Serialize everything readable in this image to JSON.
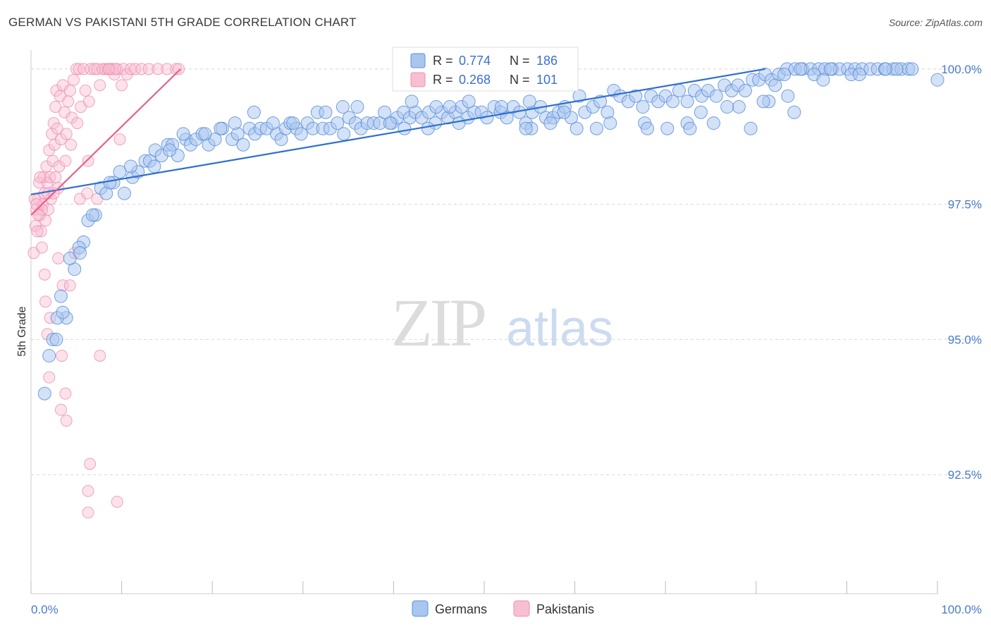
{
  "title": "GERMAN VS PAKISTANI 5TH GRADE CORRELATION CHART",
  "source": "Source: ZipAtlas.com",
  "watermark": {
    "part1": "ZIP",
    "part2": "atlas"
  },
  "legend": {
    "r_label": "R =",
    "n_label": "N =",
    "germans": {
      "r": "0.774",
      "n": "186"
    },
    "pakistanis": {
      "r": "0.268",
      "n": "101"
    }
  },
  "colors": {
    "german_fill": "#a9c6f0",
    "german_stroke": "#5b8fdb",
    "german_line": "#2f6fd0",
    "pakistani_fill": "#f8bfd2",
    "pakistani_stroke": "#ec8fb0",
    "pakistani_line": "#e8608a",
    "grid": "#d8d8d8",
    "tick_label": "#4a7bc8"
  },
  "chart_data": {
    "type": "scatter",
    "title": "GERMAN VS PAKISTANI 5TH GRADE CORRELATION CHART",
    "xlabel": "",
    "ylabel": "5th Grade",
    "xlim": [
      0,
      100
    ],
    "ylim": [
      90.3,
      100.35
    ],
    "x_tick_labels": [
      "0.0%",
      "100.0%"
    ],
    "y_ticks": [
      92.5,
      95.0,
      97.5,
      100.0
    ],
    "y_tick_labels": [
      "92.5%",
      "95.0%",
      "97.5%",
      "100.0%"
    ],
    "legend_position": "bottom-center",
    "bottom_legend": [
      "Germans",
      "Pakistanis"
    ],
    "series": [
      {
        "name": "Germans",
        "r": 0.774,
        "n": 186,
        "trend": [
          [
            0,
            97.68
          ],
          [
            81,
            100.0
          ]
        ],
        "points": [
          [
            1.5,
            94.0
          ],
          [
            2,
            94.7
          ],
          [
            2.4,
            95.0
          ],
          [
            3.3,
            95.8
          ],
          [
            3.9,
            95.4
          ],
          [
            2.9,
            95.4
          ],
          [
            4.8,
            96.3
          ],
          [
            4.3,
            96.5
          ],
          [
            5.8,
            96.8
          ],
          [
            5.3,
            96.7
          ],
          [
            6.3,
            97.2
          ],
          [
            7.1,
            97.3
          ],
          [
            7.7,
            97.8
          ],
          [
            8.3,
            97.7
          ],
          [
            9.1,
            97.9
          ],
          [
            9.8,
            98.1
          ],
          [
            10.3,
            97.7
          ],
          [
            11.2,
            98.0
          ],
          [
            11.8,
            98.1
          ],
          [
            12.6,
            98.3
          ],
          [
            13.1,
            98.3
          ],
          [
            13.7,
            98.5
          ],
          [
            14.4,
            98.4
          ],
          [
            15.1,
            98.6
          ],
          [
            15.6,
            98.6
          ],
          [
            16.2,
            98.4
          ],
          [
            17.1,
            98.7
          ],
          [
            17.6,
            98.6
          ],
          [
            18.2,
            98.7
          ],
          [
            18.9,
            98.8
          ],
          [
            19.6,
            98.6
          ],
          [
            20.3,
            98.7
          ],
          [
            21.1,
            98.9
          ],
          [
            22.2,
            98.7
          ],
          [
            22.8,
            98.8
          ],
          [
            23.4,
            98.6
          ],
          [
            24.1,
            98.9
          ],
          [
            24.7,
            98.8
          ],
          [
            25.3,
            98.9
          ],
          [
            26.0,
            98.9
          ],
          [
            27.1,
            98.8
          ],
          [
            27.6,
            98.7
          ],
          [
            28.1,
            98.9
          ],
          [
            28.6,
            99.0
          ],
          [
            29.3,
            98.9
          ],
          [
            29.8,
            98.8
          ],
          [
            30.5,
            99.0
          ],
          [
            31.1,
            98.9
          ],
          [
            31.6,
            99.2
          ],
          [
            32.2,
            98.9
          ],
          [
            33.0,
            98.9
          ],
          [
            33.8,
            99.0
          ],
          [
            34.5,
            98.8
          ],
          [
            35.1,
            99.1
          ],
          [
            35.8,
            99.0
          ],
          [
            36.4,
            98.9
          ],
          [
            37.1,
            99.0
          ],
          [
            37.8,
            99.0
          ],
          [
            38.5,
            99.0
          ],
          [
            39.0,
            99.2
          ],
          [
            39.8,
            99.0
          ],
          [
            40.4,
            99.1
          ],
          [
            41.1,
            99.2
          ],
          [
            41.8,
            99.1
          ],
          [
            42.4,
            99.2
          ],
          [
            43.1,
            99.1
          ],
          [
            43.9,
            99.2
          ],
          [
            44.6,
            99.0
          ],
          [
            45.3,
            99.2
          ],
          [
            46.0,
            99.1
          ],
          [
            46.8,
            99.2
          ],
          [
            47.5,
            99.3
          ],
          [
            48.2,
            99.1
          ],
          [
            48.9,
            99.2
          ],
          [
            49.7,
            99.2
          ],
          [
            50.3,
            99.1
          ],
          [
            51.1,
            99.3
          ],
          [
            51.8,
            99.2
          ],
          [
            52.5,
            99.1
          ],
          [
            53.2,
            99.3
          ],
          [
            53.9,
            99.2
          ],
          [
            54.6,
            99.0
          ],
          [
            55.3,
            99.2
          ],
          [
            56.2,
            99.3
          ],
          [
            56.8,
            99.1
          ],
          [
            57.6,
            99.1
          ],
          [
            58.2,
            99.2
          ],
          [
            58.9,
            99.3
          ],
          [
            59.6,
            99.1
          ],
          [
            60.5,
            99.5
          ],
          [
            61.1,
            99.2
          ],
          [
            62.0,
            99.3
          ],
          [
            62.8,
            99.4
          ],
          [
            63.6,
            99.2
          ],
          [
            64.3,
            99.6
          ],
          [
            65.0,
            99.5
          ],
          [
            65.9,
            99.4
          ],
          [
            66.7,
            99.5
          ],
          [
            67.5,
            99.3
          ],
          [
            68.4,
            99.5
          ],
          [
            69.2,
            99.4
          ],
          [
            70.0,
            99.5
          ],
          [
            70.8,
            99.4
          ],
          [
            71.5,
            99.6
          ],
          [
            72.4,
            99.4
          ],
          [
            73.2,
            99.6
          ],
          [
            74.0,
            99.5
          ],
          [
            74.7,
            99.6
          ],
          [
            75.6,
            99.5
          ],
          [
            76.5,
            99.7
          ],
          [
            77.3,
            99.6
          ],
          [
            78.0,
            99.7
          ],
          [
            78.8,
            99.6
          ],
          [
            79.6,
            99.8
          ],
          [
            80.3,
            99.8
          ],
          [
            81.0,
            99.9
          ],
          [
            81.7,
            99.8
          ],
          [
            82.5,
            99.9
          ],
          [
            83.4,
            100.0
          ],
          [
            84.3,
            100.0
          ],
          [
            85.1,
            100.0
          ],
          [
            86.0,
            100.0
          ],
          [
            86.9,
            100.0
          ],
          [
            87.6,
            100.0
          ],
          [
            88.4,
            100.0
          ],
          [
            89.2,
            100.0
          ],
          [
            90.1,
            100.0
          ],
          [
            90.9,
            100.0
          ],
          [
            91.7,
            100.0
          ],
          [
            92.6,
            100.0
          ],
          [
            93.4,
            100.0
          ],
          [
            94.2,
            100.0
          ],
          [
            95.1,
            100.0
          ],
          [
            96.0,
            100.0
          ],
          [
            96.8,
            100.0
          ],
          [
            72.4,
            99.0
          ],
          [
            75.3,
            99.0
          ],
          [
            72.7,
            98.9
          ],
          [
            63.9,
            99.0
          ],
          [
            67.7,
            99.0
          ],
          [
            55.2,
            98.9
          ],
          [
            57.3,
            99.0
          ],
          [
            60.2,
            98.9
          ],
          [
            62.4,
            98.9
          ],
          [
            54.6,
            98.9
          ],
          [
            47.2,
            99.0
          ],
          [
            43.8,
            98.9
          ],
          [
            41.2,
            98.9
          ],
          [
            39.6,
            99.0
          ],
          [
            68.0,
            98.9
          ],
          [
            70.2,
            98.9
          ],
          [
            73.9,
            99.2
          ],
          [
            78.1,
            99.3
          ],
          [
            79.4,
            98.9
          ],
          [
            81.4,
            99.4
          ],
          [
            83.5,
            99.5
          ],
          [
            84.2,
            99.2
          ],
          [
            82.1,
            99.7
          ],
          [
            80.8,
            99.4
          ],
          [
            76.8,
            99.3
          ],
          [
            58.8,
            99.2
          ],
          [
            55.0,
            99.4
          ],
          [
            51.9,
            99.3
          ],
          [
            48.3,
            99.4
          ],
          [
            46.2,
            99.3
          ],
          [
            44.7,
            99.3
          ],
          [
            42.0,
            99.4
          ],
          [
            36.0,
            99.3
          ],
          [
            34.4,
            99.3
          ],
          [
            32.5,
            99.2
          ],
          [
            28.9,
            99.0
          ],
          [
            26.7,
            99.0
          ],
          [
            24.6,
            99.2
          ],
          [
            22.5,
            99.0
          ],
          [
            20.9,
            98.9
          ],
          [
            19.2,
            98.8
          ],
          [
            16.8,
            98.8
          ],
          [
            15.3,
            98.5
          ],
          [
            13.6,
            98.2
          ],
          [
            11.0,
            98.2
          ],
          [
            8.7,
            97.9
          ],
          [
            6.8,
            97.3
          ],
          [
            5.4,
            96.6
          ],
          [
            3.5,
            95.5
          ],
          [
            2.8,
            95.0
          ],
          [
            90.5,
            99.9
          ],
          [
            95.5,
            100.0
          ],
          [
            97.2,
            100.0
          ],
          [
            100.0,
            99.8
          ],
          [
            88.2,
            100.0
          ],
          [
            86.4,
            99.9
          ],
          [
            84.9,
            100.0
          ],
          [
            83.1,
            99.9
          ],
          [
            87.4,
            99.8
          ],
          [
            91.4,
            99.9
          ],
          [
            94.3,
            100.0
          ]
        ]
      },
      {
        "name": "Pakistanis",
        "r": 0.268,
        "n": 101,
        "trend": [
          [
            0,
            97.3
          ],
          [
            16.5,
            100.0
          ]
        ],
        "points": [
          [
            0.3,
            96.6
          ],
          [
            0.5,
            97.1
          ],
          [
            0.6,
            97.4
          ],
          [
            0.8,
            97.6
          ],
          [
            0.9,
            97.9
          ],
          [
            1.0,
            97.3
          ],
          [
            1.1,
            97.0
          ],
          [
            1.2,
            96.7
          ],
          [
            1.3,
            97.5
          ],
          [
            1.4,
            98.0
          ],
          [
            1.5,
            97.7
          ],
          [
            1.6,
            97.2
          ],
          [
            1.7,
            98.2
          ],
          [
            1.8,
            97.9
          ],
          [
            1.9,
            97.4
          ],
          [
            2.0,
            98.5
          ],
          [
            2.1,
            98.0
          ],
          [
            2.2,
            97.6
          ],
          [
            2.3,
            98.8
          ],
          [
            2.4,
            98.3
          ],
          [
            2.5,
            99.0
          ],
          [
            2.6,
            98.6
          ],
          [
            2.7,
            99.3
          ],
          [
            2.8,
            99.6
          ],
          [
            2.9,
            98.9
          ],
          [
            3.0,
            97.8
          ],
          [
            3.1,
            98.2
          ],
          [
            3.2,
            99.5
          ],
          [
            3.3,
            98.7
          ],
          [
            3.5,
            99.7
          ],
          [
            3.7,
            99.2
          ],
          [
            3.9,
            98.8
          ],
          [
            4.1,
            99.4
          ],
          [
            4.3,
            99.6
          ],
          [
            4.5,
            99.1
          ],
          [
            4.7,
            99.8
          ],
          [
            5.0,
            100.0
          ],
          [
            5.3,
            100.0
          ],
          [
            5.5,
            99.3
          ],
          [
            5.8,
            100.0
          ],
          [
            6.0,
            99.6
          ],
          [
            6.3,
            98.3
          ],
          [
            6.6,
            100.0
          ],
          [
            7.0,
            100.0
          ],
          [
            7.3,
            100.0
          ],
          [
            7.6,
            99.7
          ],
          [
            7.9,
            100.0
          ],
          [
            8.2,
            100.0
          ],
          [
            8.5,
            100.0
          ],
          [
            8.8,
            100.0
          ],
          [
            9.0,
            100.0
          ],
          [
            9.2,
            99.9
          ],
          [
            9.5,
            100.0
          ],
          [
            9.8,
            98.7
          ],
          [
            10.2,
            100.0
          ],
          [
            10.6,
            99.9
          ],
          [
            11.0,
            100.0
          ],
          [
            11.5,
            100.0
          ],
          [
            12.2,
            100.0
          ],
          [
            13.0,
            100.0
          ],
          [
            14.0,
            100.0
          ],
          [
            15.0,
            100.0
          ],
          [
            16.0,
            100.0
          ],
          [
            16.3,
            100.0
          ],
          [
            9.3,
            100.0
          ],
          [
            8.6,
            100.0
          ],
          [
            10.0,
            99.7
          ],
          [
            6.4,
            99.4
          ],
          [
            5.1,
            99.0
          ],
          [
            4.4,
            98.6
          ],
          [
            3.8,
            98.3
          ],
          [
            2.7,
            98.0
          ],
          [
            1.9,
            97.7
          ],
          [
            1.2,
            97.4
          ],
          [
            0.7,
            97.0
          ],
          [
            0.4,
            97.6
          ],
          [
            1.5,
            96.2
          ],
          [
            1.6,
            95.7
          ],
          [
            2.1,
            95.4
          ],
          [
            1.8,
            95.1
          ],
          [
            3.0,
            96.5
          ],
          [
            3.5,
            96.0
          ],
          [
            4.3,
            96.0
          ],
          [
            4.8,
            96.6
          ],
          [
            5.4,
            97.6
          ],
          [
            6.2,
            97.7
          ],
          [
            7.3,
            97.6
          ],
          [
            3.4,
            94.7
          ],
          [
            2.0,
            94.3
          ],
          [
            3.8,
            94.0
          ],
          [
            3.3,
            93.7
          ],
          [
            3.9,
            93.5
          ],
          [
            6.5,
            92.7
          ],
          [
            6.3,
            92.2
          ],
          [
            6.3,
            91.8
          ],
          [
            9.5,
            92.0
          ],
          [
            7.6,
            94.7
          ],
          [
            2.5,
            97.7
          ],
          [
            0.8,
            97.3
          ],
          [
            1.0,
            98.0
          ],
          [
            0.6,
            97.5
          ]
        ]
      }
    ]
  }
}
